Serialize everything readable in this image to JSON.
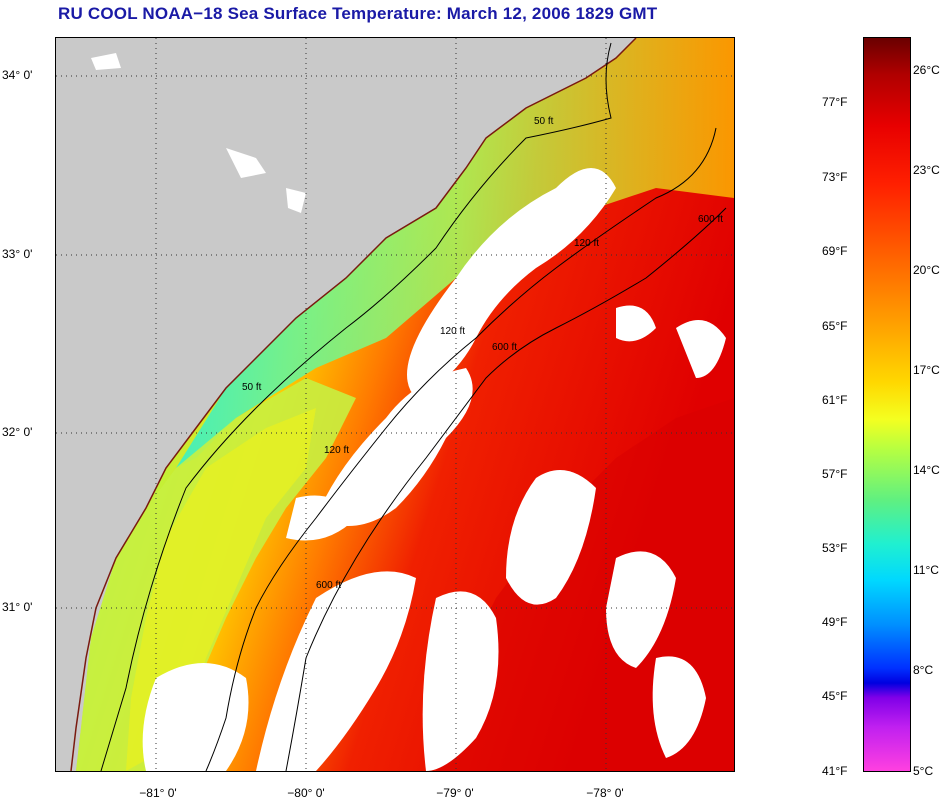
{
  "title": "RU COOL  NOAA−18  Sea Surface Temperature:  March 12, 2006 1829 GMT",
  "latitude_labels": [
    "34° 0'",
    "33° 0'",
    "32° 0'",
    "31° 0'"
  ],
  "longitude_labels": [
    "−81° 0'",
    "−80° 0'",
    "−79° 0'",
    "−78° 0'"
  ],
  "contour_labels": [
    "50 ft",
    "120 ft",
    "600 ft"
  ],
  "colorbar": {
    "fahrenheit": [
      "77°F",
      "73°F",
      "69°F",
      "65°F",
      "61°F",
      "57°F",
      "53°F",
      "49°F",
      "45°F",
      "41°F"
    ],
    "celsius": [
      "26°C",
      "23°C",
      "20°C",
      "17°C",
      "14°C",
      "11°C",
      "8°C",
      "5°C"
    ]
  },
  "colors": {
    "title": "#1a1aa6",
    "land": "#c9c9c9",
    "cloud": "#ffffff",
    "warm": "#e82010",
    "cool": "#30e0e0"
  }
}
